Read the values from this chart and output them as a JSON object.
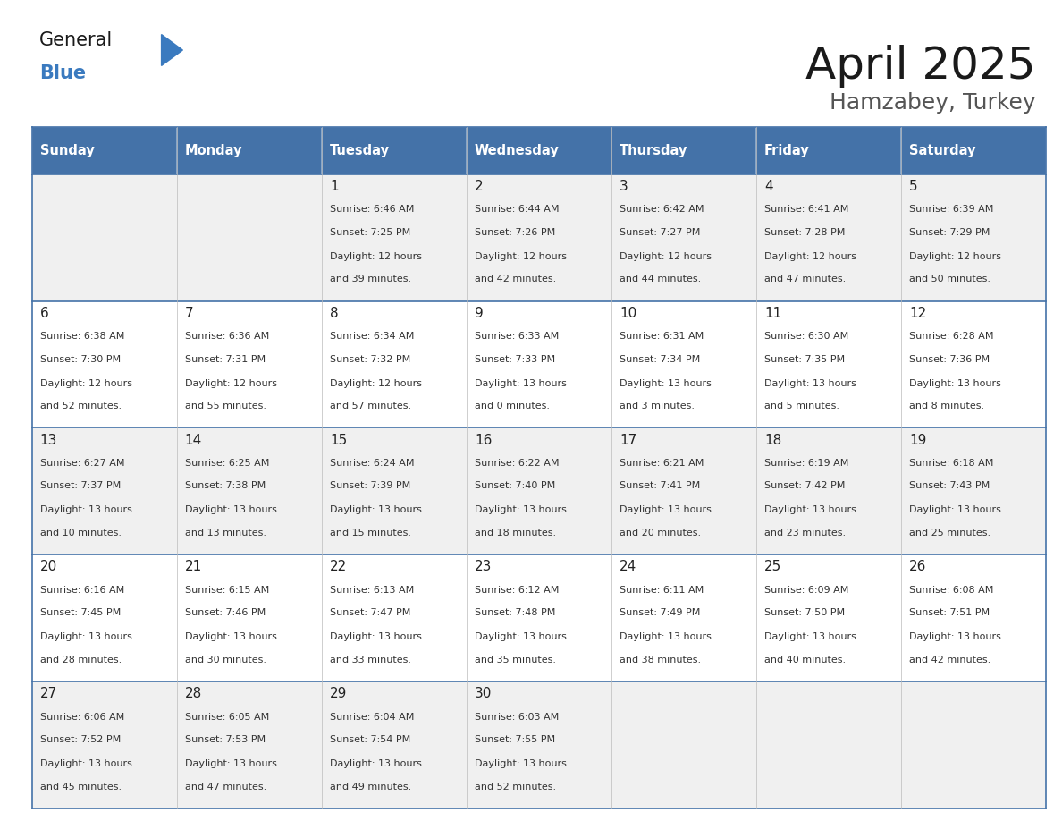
{
  "title": "April 2025",
  "subtitle": "Hamzabey, Turkey",
  "days_of_week": [
    "Sunday",
    "Monday",
    "Tuesday",
    "Wednesday",
    "Thursday",
    "Friday",
    "Saturday"
  ],
  "header_bg": "#4472a8",
  "header_text": "#ffffff",
  "row_bg_odd": "#f0f0f0",
  "row_bg_even": "#ffffff",
  "border_color": "#4472a8",
  "text_color": "#333333",
  "day_num_color": "#222222",
  "logo_general_color": "#1a1a1a",
  "logo_blue_color": "#3a7abf",
  "calendar_data": [
    [
      null,
      null,
      {
        "day": 1,
        "sunrise": "6:46 AM",
        "sunset": "7:25 PM",
        "daylight": "12 hours and 39 minutes"
      },
      {
        "day": 2,
        "sunrise": "6:44 AM",
        "sunset": "7:26 PM",
        "daylight": "12 hours and 42 minutes"
      },
      {
        "day": 3,
        "sunrise": "6:42 AM",
        "sunset": "7:27 PM",
        "daylight": "12 hours and 44 minutes"
      },
      {
        "day": 4,
        "sunrise": "6:41 AM",
        "sunset": "7:28 PM",
        "daylight": "12 hours and 47 minutes"
      },
      {
        "day": 5,
        "sunrise": "6:39 AM",
        "sunset": "7:29 PM",
        "daylight": "12 hours and 50 minutes"
      }
    ],
    [
      {
        "day": 6,
        "sunrise": "6:38 AM",
        "sunset": "7:30 PM",
        "daylight": "12 hours and 52 minutes"
      },
      {
        "day": 7,
        "sunrise": "6:36 AM",
        "sunset": "7:31 PM",
        "daylight": "12 hours and 55 minutes"
      },
      {
        "day": 8,
        "sunrise": "6:34 AM",
        "sunset": "7:32 PM",
        "daylight": "12 hours and 57 minutes"
      },
      {
        "day": 9,
        "sunrise": "6:33 AM",
        "sunset": "7:33 PM",
        "daylight": "13 hours and 0 minutes"
      },
      {
        "day": 10,
        "sunrise": "6:31 AM",
        "sunset": "7:34 PM",
        "daylight": "13 hours and 3 minutes"
      },
      {
        "day": 11,
        "sunrise": "6:30 AM",
        "sunset": "7:35 PM",
        "daylight": "13 hours and 5 minutes"
      },
      {
        "day": 12,
        "sunrise": "6:28 AM",
        "sunset": "7:36 PM",
        "daylight": "13 hours and 8 minutes"
      }
    ],
    [
      {
        "day": 13,
        "sunrise": "6:27 AM",
        "sunset": "7:37 PM",
        "daylight": "13 hours and 10 minutes"
      },
      {
        "day": 14,
        "sunrise": "6:25 AM",
        "sunset": "7:38 PM",
        "daylight": "13 hours and 13 minutes"
      },
      {
        "day": 15,
        "sunrise": "6:24 AM",
        "sunset": "7:39 PM",
        "daylight": "13 hours and 15 minutes"
      },
      {
        "day": 16,
        "sunrise": "6:22 AM",
        "sunset": "7:40 PM",
        "daylight": "13 hours and 18 minutes"
      },
      {
        "day": 17,
        "sunrise": "6:21 AM",
        "sunset": "7:41 PM",
        "daylight": "13 hours and 20 minutes"
      },
      {
        "day": 18,
        "sunrise": "6:19 AM",
        "sunset": "7:42 PM",
        "daylight": "13 hours and 23 minutes"
      },
      {
        "day": 19,
        "sunrise": "6:18 AM",
        "sunset": "7:43 PM",
        "daylight": "13 hours and 25 minutes"
      }
    ],
    [
      {
        "day": 20,
        "sunrise": "6:16 AM",
        "sunset": "7:45 PM",
        "daylight": "13 hours and 28 minutes"
      },
      {
        "day": 21,
        "sunrise": "6:15 AM",
        "sunset": "7:46 PM",
        "daylight": "13 hours and 30 minutes"
      },
      {
        "day": 22,
        "sunrise": "6:13 AM",
        "sunset": "7:47 PM",
        "daylight": "13 hours and 33 minutes"
      },
      {
        "day": 23,
        "sunrise": "6:12 AM",
        "sunset": "7:48 PM",
        "daylight": "13 hours and 35 minutes"
      },
      {
        "day": 24,
        "sunrise": "6:11 AM",
        "sunset": "7:49 PM",
        "daylight": "13 hours and 38 minutes"
      },
      {
        "day": 25,
        "sunrise": "6:09 AM",
        "sunset": "7:50 PM",
        "daylight": "13 hours and 40 minutes"
      },
      {
        "day": 26,
        "sunrise": "6:08 AM",
        "sunset": "7:51 PM",
        "daylight": "13 hours and 42 minutes"
      }
    ],
    [
      {
        "day": 27,
        "sunrise": "6:06 AM",
        "sunset": "7:52 PM",
        "daylight": "13 hours and 45 minutes"
      },
      {
        "day": 28,
        "sunrise": "6:05 AM",
        "sunset": "7:53 PM",
        "daylight": "13 hours and 47 minutes"
      },
      {
        "day": 29,
        "sunrise": "6:04 AM",
        "sunset": "7:54 PM",
        "daylight": "13 hours and 49 minutes"
      },
      {
        "day": 30,
        "sunrise": "6:03 AM",
        "sunset": "7:55 PM",
        "daylight": "13 hours and 52 minutes"
      },
      null,
      null,
      null
    ]
  ]
}
